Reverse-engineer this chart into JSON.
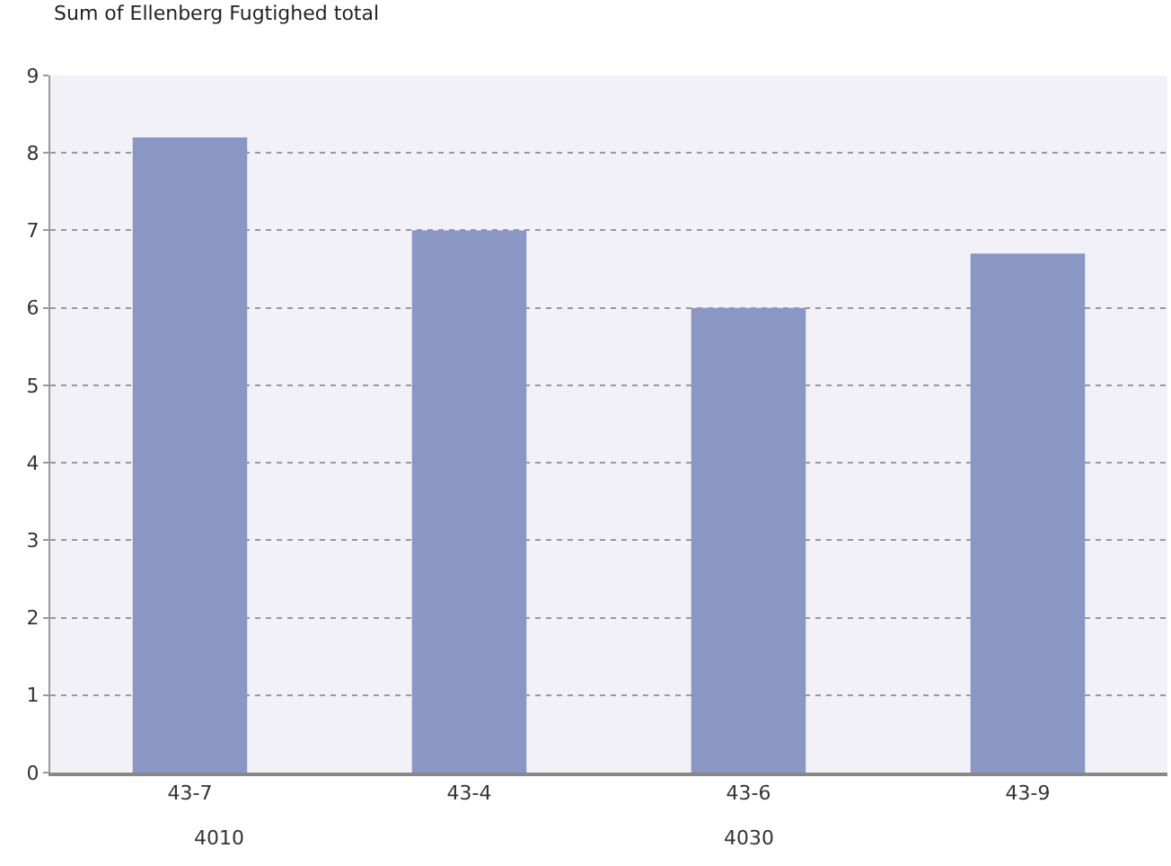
{
  "chart_data": {
    "type": "bar",
    "title": "Sum of Ellenberg Fugtighed total",
    "categories": [
      "43-7",
      "43-4",
      "43-6",
      "43-9"
    ],
    "values": [
      8.2,
      7.0,
      6.0,
      6.7
    ],
    "color": "#8a96c4",
    "ylim": [
      0,
      9
    ],
    "yticks": [
      0,
      1,
      2,
      3,
      4,
      5,
      6,
      7,
      8,
      9
    ],
    "grid": "y",
    "legend": false,
    "annotations": [
      "4010",
      "4030"
    ]
  }
}
